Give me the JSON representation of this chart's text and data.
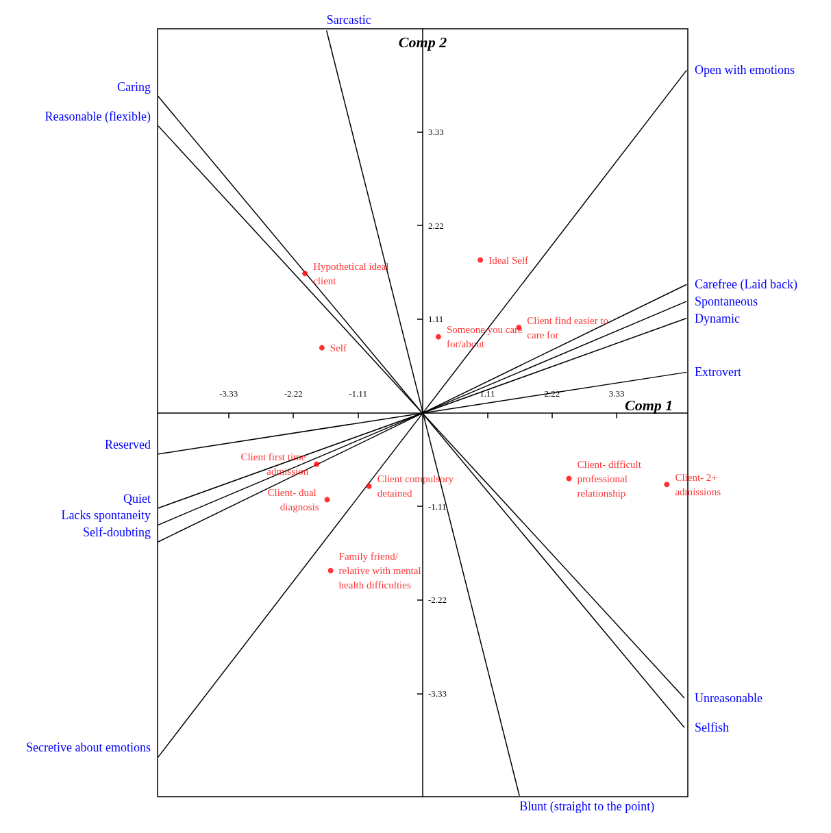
{
  "chart_data": {
    "type": "scatter",
    "xlabel": "Comp 1",
    "ylabel": "Comp 2",
    "xlim": [
      -4.55,
      4.55
    ],
    "ylim": [
      -4.55,
      4.55
    ],
    "xticks": [
      -3.33,
      -2.22,
      -1.11,
      1.11,
      2.22,
      3.33
    ],
    "yticks": [
      -3.33,
      -2.22,
      -1.11,
      1.11,
      2.22,
      3.33
    ],
    "grid": false,
    "series": [
      {
        "color": "#ff0000",
        "marker": "circle",
        "x": [
          0.99,
          -2.02,
          1.65,
          0.27,
          -1.73,
          -1.82,
          -1.64,
          -0.92,
          -1.58,
          2.51,
          4.19
        ],
        "values": [
          1.81,
          1.65,
          1.01,
          0.9,
          0.77,
          -0.61,
          -1.03,
          -0.87,
          -1.87,
          -0.78,
          -0.85
        ],
        "value_labels": [
          "Ideal Self",
          "Hypothetical ideal client",
          "Client find easier to care for",
          "Someone you care for/about",
          "Self",
          "Client first time admission",
          "Client- dual diagnosis",
          "Client compulsory detained",
          "Family friend/ relative with mental health difficulties",
          "Client- difficult professional relationship",
          "Client- 2+ admissions"
        ]
      },
      {
        "type": "line",
        "color": "#000000",
        "marker": "none",
        "x": [
          -4.54,
          4.49
        ],
        "values": [
          3.75,
          -3.73
        ]
      },
      {
        "type": "line",
        "color": "#000000",
        "marker": "none",
        "x": [
          -4.54,
          4.49
        ],
        "values": [
          3.4,
          -3.38
        ]
      },
      {
        "type": "line",
        "color": "#000000",
        "marker": "none",
        "x": [
          -1.65,
          1.66
        ],
        "values": [
          4.53,
          -4.54
        ]
      },
      {
        "type": "line",
        "color": "#000000",
        "marker": "none",
        "x": [
          4.53,
          -4.54
        ],
        "values": [
          4.06,
          -4.08
        ]
      },
      {
        "type": "line",
        "color": "#000000",
        "marker": "none",
        "x": [
          4.53,
          -4.54
        ],
        "values": [
          1.52,
          -1.53
        ]
      },
      {
        "type": "line",
        "color": "#000000",
        "marker": "none",
        "x": [
          4.53,
          -4.54
        ],
        "values": [
          1.32,
          -1.33
        ]
      },
      {
        "type": "line",
        "color": "#000000",
        "marker": "none",
        "x": [
          4.53,
          -4.54
        ],
        "values": [
          1.12,
          -1.13
        ]
      },
      {
        "type": "line",
        "color": "#000000",
        "marker": "none",
        "x": [
          4.53,
          -4.54
        ],
        "values": [
          0.48,
          -0.49
        ]
      }
    ],
    "annotations": [
      {
        "text": "Caring",
        "x": -4.54,
        "y": 3.75
      },
      {
        "text": "Selfish",
        "x": 4.49,
        "y": -3.73
      },
      {
        "text": "Reasonable (flexible)",
        "x": -4.54,
        "y": 3.4
      },
      {
        "text": "Unreasonable",
        "x": 4.49,
        "y": -3.38
      },
      {
        "text": "Sarcastic",
        "x": -1.65,
        "y": 4.53
      },
      {
        "text": "Blunt (straight to the point)",
        "x": 1.66,
        "y": -4.54
      },
      {
        "text": "Open with emotions",
        "x": 4.53,
        "y": 4.06
      },
      {
        "text": "Secretive about emotions",
        "x": -4.54,
        "y": -4.08
      },
      {
        "text": "Carefree (Laid back)",
        "x": 4.53,
        "y": 1.52
      },
      {
        "text": "Self-doubting",
        "x": -4.54,
        "y": -1.53
      },
      {
        "text": "Spontaneous",
        "x": 4.53,
        "y": 1.32
      },
      {
        "text": "Lacks spontaneity",
        "x": -4.54,
        "y": -1.33
      },
      {
        "text": "Dynamic",
        "x": 4.53,
        "y": 1.12
      },
      {
        "text": "Quiet",
        "x": -4.54,
        "y": -1.13
      },
      {
        "text": "Extrovert",
        "x": 4.53,
        "y": 0.48
      },
      {
        "text": "Reserved",
        "x": -4.54,
        "y": -0.49
      }
    ]
  }
}
